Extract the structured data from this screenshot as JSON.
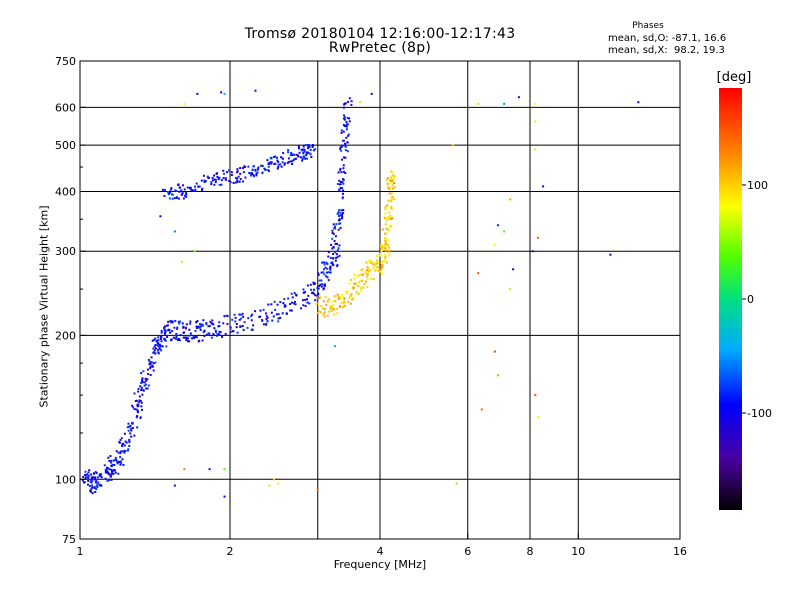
{
  "header": {
    "title_line1": "Tromsø 20180104 12:16:00-12:17:43",
    "title_line2": "RwPretec (8p)"
  },
  "phases_box": {
    "title": "Phases",
    "o_line": "mean, sd,O: -87.1, 16.6",
    "x_line": "mean, sd,X:  98.2, 19.3"
  },
  "colorbar": {
    "title": "[deg]",
    "ticks": [
      {
        "value": 100,
        "label": "100"
      },
      {
        "value": 0,
        "label": "0"
      },
      {
        "value": -100,
        "label": "-100"
      }
    ],
    "range": [
      -185,
      185
    ]
  },
  "chart_data": {
    "type": "scatter",
    "title": "Tromsø 20180104 12:16:00-12:17:43",
    "subtitle": "RwPretec (8p)",
    "xlabel": "Frequency [MHz]",
    "ylabel": "Stationary phase Virtual Height [km]",
    "x_scale": "log",
    "y_scale": "log",
    "xlim": [
      1,
      16
    ],
    "ylim": [
      75,
      750
    ],
    "xticks": [
      {
        "value": 1,
        "label": "1"
      },
      {
        "value": 2,
        "label": "2"
      },
      {
        "value": 4,
        "label": "4"
      },
      {
        "value": 6,
        "label": "6"
      },
      {
        "value": 8,
        "label": "8"
      },
      {
        "value": 10,
        "label": "10"
      },
      {
        "value": 16,
        "label": "16"
      }
    ],
    "xgrid": [
      2,
      3,
      4,
      6,
      8,
      10
    ],
    "yticks": [
      {
        "value": 75,
        "label": "75"
      },
      {
        "value": 100,
        "label": "100"
      },
      {
        "value": 200,
        "label": "200"
      },
      {
        "value": 300,
        "label": "300"
      },
      {
        "value": 400,
        "label": "400"
      },
      {
        "value": 500,
        "label": "500"
      },
      {
        "value": 600,
        "label": "600"
      },
      {
        "value": 750,
        "label": "750"
      }
    ],
    "ygrid": [
      100,
      200,
      300,
      400,
      500,
      600
    ],
    "grid": true,
    "color_variable": "phase [deg]",
    "traces": [
      {
        "name_hint": "O-trace lower layer",
        "phase": -95,
        "spread_h": 0.05,
        "points": [
          [
            1.02,
            100
          ],
          [
            1.06,
            98
          ],
          [
            1.1,
            100
          ],
          [
            1.15,
            105
          ],
          [
            1.2,
            110
          ],
          [
            1.25,
            120
          ],
          [
            1.3,
            140
          ],
          [
            1.35,
            160
          ],
          [
            1.4,
            180
          ],
          [
            1.45,
            195
          ],
          [
            1.5,
            205
          ],
          [
            1.6,
            205
          ],
          [
            1.7,
            203
          ],
          [
            1.8,
            205
          ],
          [
            2.0,
            210
          ],
          [
            2.2,
            215
          ],
          [
            2.5,
            225
          ],
          [
            2.8,
            240
          ],
          [
            3.0,
            255
          ],
          [
            3.15,
            275
          ],
          [
            3.25,
            300
          ],
          [
            3.3,
            350
          ],
          [
            3.35,
            420
          ],
          [
            3.4,
            520
          ],
          [
            3.45,
            620
          ]
        ]
      },
      {
        "name_hint": "O-trace upper layer",
        "phase": -95,
        "spread_h": 0.035,
        "points": [
          [
            1.47,
            390
          ],
          [
            1.6,
            400
          ],
          [
            1.8,
            420
          ],
          [
            2.0,
            430
          ],
          [
            2.2,
            440
          ],
          [
            2.4,
            455
          ],
          [
            2.6,
            470
          ],
          [
            2.8,
            480
          ],
          [
            2.95,
            490
          ]
        ]
      },
      {
        "name_hint": "X-trace",
        "phase": 100,
        "spread_h": 0.05,
        "points": [
          [
            3.0,
            230
          ],
          [
            3.2,
            230
          ],
          [
            3.4,
            240
          ],
          [
            3.6,
            255
          ],
          [
            3.8,
            270
          ],
          [
            4.0,
            285
          ],
          [
            4.1,
            300
          ],
          [
            4.15,
            340
          ],
          [
            4.2,
            400
          ],
          [
            4.22,
            430
          ]
        ]
      }
    ],
    "scattered_points": [
      {
        "f": 1.62,
        "h": 610,
        "p": 80
      },
      {
        "f": 1.72,
        "h": 640,
        "p": -100
      },
      {
        "f": 1.92,
        "h": 645,
        "p": -95
      },
      {
        "f": 1.95,
        "h": 640,
        "p": -40
      },
      {
        "f": 2.25,
        "h": 650,
        "p": -100
      },
      {
        "f": 1.7,
        "h": 300,
        "p": 40
      },
      {
        "f": 1.45,
        "h": 355,
        "p": -100
      },
      {
        "f": 1.55,
        "h": 330,
        "p": -60
      },
      {
        "f": 1.6,
        "h": 285,
        "p": 100
      },
      {
        "f": 3.85,
        "h": 640,
        "p": -100
      },
      {
        "f": 3.65,
        "h": 615,
        "p": 100
      },
      {
        "f": 3.25,
        "h": 190,
        "p": -40
      },
      {
        "f": 5.6,
        "h": 500,
        "p": 100
      },
      {
        "f": 6.3,
        "h": 610,
        "p": 100
      },
      {
        "f": 7.1,
        "h": 610,
        "p": -50
      },
      {
        "f": 8.2,
        "h": 610,
        "p": 80
      },
      {
        "f": 7.6,
        "h": 630,
        "p": -100
      },
      {
        "f": 8.2,
        "h": 560,
        "p": 70
      },
      {
        "f": 8.2,
        "h": 490,
        "p": 60
      },
      {
        "f": 8.5,
        "h": 410,
        "p": -100
      },
      {
        "f": 7.3,
        "h": 385,
        "p": 120
      },
      {
        "f": 6.9,
        "h": 340,
        "p": -80
      },
      {
        "f": 7.1,
        "h": 330,
        "p": 30
      },
      {
        "f": 6.8,
        "h": 310,
        "p": 80
      },
      {
        "f": 8.3,
        "h": 320,
        "p": 140
      },
      {
        "f": 8.1,
        "h": 300,
        "p": -120
      },
      {
        "f": 7.4,
        "h": 275,
        "p": -100
      },
      {
        "f": 6.3,
        "h": 270,
        "p": 150
      },
      {
        "f": 7.3,
        "h": 250,
        "p": 60
      },
      {
        "f": 6.8,
        "h": 185,
        "p": 160
      },
      {
        "f": 6.9,
        "h": 165,
        "p": 120
      },
      {
        "f": 6.4,
        "h": 140,
        "p": 140
      },
      {
        "f": 8.2,
        "h": 150,
        "p": 150
      },
      {
        "f": 8.3,
        "h": 135,
        "p": 80
      },
      {
        "f": 11.6,
        "h": 295,
        "p": -100
      },
      {
        "f": 13.2,
        "h": 615,
        "p": -100
      },
      {
        "f": 5.7,
        "h": 98,
        "p": 50
      },
      {
        "f": 3.0,
        "h": 95,
        "p": 140
      },
      {
        "f": 2.4,
        "h": 97,
        "p": 95
      },
      {
        "f": 2.5,
        "h": 98,
        "p": 90
      },
      {
        "f": 2.45,
        "h": 100,
        "p": 100
      },
      {
        "f": 1.82,
        "h": 105,
        "p": -100
      },
      {
        "f": 1.62,
        "h": 105,
        "p": 130
      },
      {
        "f": 1.95,
        "h": 92,
        "p": -100
      },
      {
        "f": 1.55,
        "h": 97,
        "p": -90
      },
      {
        "f": 1.95,
        "h": 105,
        "p": 40
      }
    ]
  }
}
